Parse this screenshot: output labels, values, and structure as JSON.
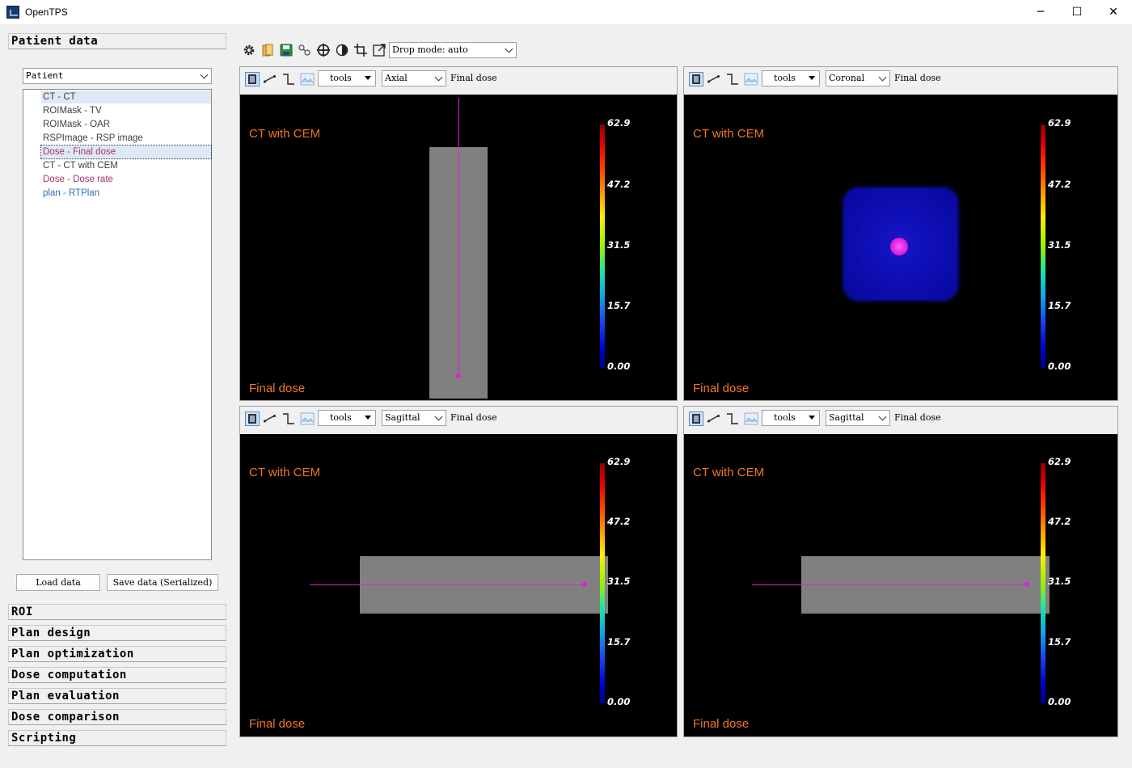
{
  "app": {
    "title": "OpenTPS"
  },
  "window_controls": {
    "minimize": "─",
    "maximize": "☐",
    "close": "✕"
  },
  "left_panel": {
    "sections": {
      "patient_data": "Patient data",
      "roi": "ROI",
      "plan_design": "Plan design",
      "plan_optimization": "Plan optimization",
      "dose_computation": "Dose computation",
      "plan_evaluation": "Plan evaluation",
      "dose_comparison": "Dose comparison",
      "scripting": "Scripting"
    },
    "patient_select": "Patient",
    "data_items": [
      {
        "label": "CT - CT",
        "color": "#404040"
      },
      {
        "label": "ROIMask - TV",
        "color": "#404040"
      },
      {
        "label": "ROIMask - OAR",
        "color": "#404040"
      },
      {
        "label": "RSPImage - RSP image",
        "color": "#404040"
      },
      {
        "label": "Dose - Final dose",
        "color": "#b0306a"
      },
      {
        "label": "CT - CT with CEM",
        "color": "#404040"
      },
      {
        "label": "Dose - Dose rate",
        "color": "#b0306a"
      },
      {
        "label": "plan - RTPlan",
        "color": "#2a6eb8"
      }
    ],
    "load_button": "Load data",
    "save_button": "Save data (Serialized)"
  },
  "toolbar": {
    "icons": [
      "settings-icon",
      "open-folder-icon",
      "save-icon",
      "link-icon",
      "crosshair-icon",
      "contrast-icon",
      "crop-icon",
      "window-icon"
    ],
    "drop_mode": "Drop mode: auto"
  },
  "colors": {
    "overlay_text": "#f0761e",
    "beam_line": "#e020e0",
    "phantom": "#808080"
  },
  "viewers": [
    {
      "id": "top-left",
      "tools": "tools",
      "view": "Axial",
      "image_label": "Final dose",
      "top_overlay": "CT with CEM",
      "bottom_overlay": "Final dose",
      "colorbar": [
        "62.9",
        "47.2",
        "31.5",
        "15.7",
        "0.00"
      ]
    },
    {
      "id": "top-right",
      "tools": "tools",
      "view": "Coronal",
      "image_label": "Final dose",
      "top_overlay": "CT with CEM",
      "bottom_overlay": "Final dose",
      "colorbar": [
        "62.9",
        "47.2",
        "31.5",
        "15.7",
        "0.00"
      ]
    },
    {
      "id": "bottom-left",
      "tools": "tools",
      "view": "Sagittal",
      "image_label": "Final dose",
      "top_overlay": "CT with CEM",
      "bottom_overlay": "Final dose",
      "colorbar": [
        "62.9",
        "47.2",
        "31.5",
        "15.7",
        "0.00"
      ]
    },
    {
      "id": "bottom-right",
      "tools": "tools",
      "view": "Sagittal",
      "image_label": "Final dose",
      "top_overlay": "CT with CEM",
      "bottom_overlay": "Final dose",
      "colorbar": [
        "62.9",
        "47.2",
        "31.5",
        "15.7",
        "0.00"
      ]
    }
  ]
}
